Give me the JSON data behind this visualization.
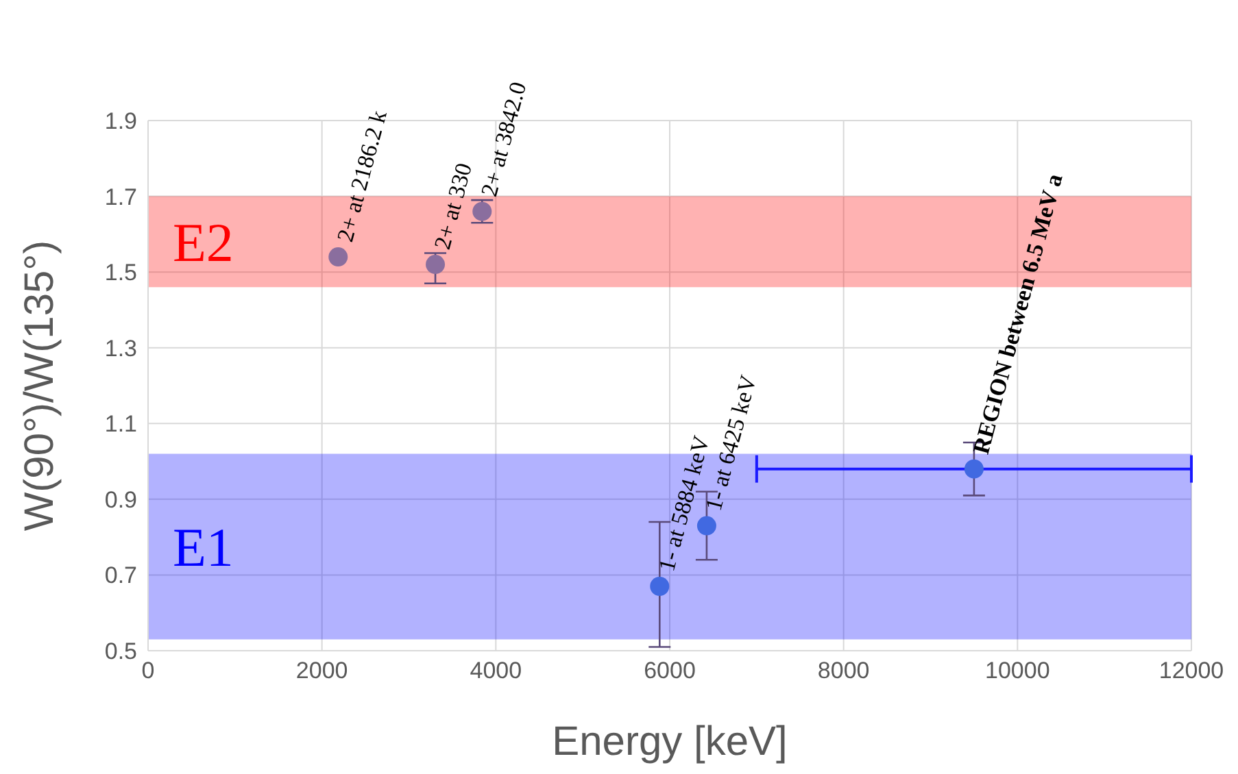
{
  "chart_data": {
    "type": "scatter",
    "xlabel": "Energy [keV]",
    "ylabel": "W(90°)/W(135°)",
    "xlim": [
      0,
      12000
    ],
    "xticks": [
      0,
      2000,
      4000,
      6000,
      8000,
      10000,
      12000
    ],
    "ylim": [
      0.5,
      1.9
    ],
    "yticks": [
      0.5,
      0.7,
      0.9,
      1.1,
      1.3,
      1.5,
      1.7,
      1.9
    ],
    "grid": true,
    "marker": "circle",
    "series": [
      {
        "color": "#8a6e9e",
        "x": [
          2186,
          3304,
          3842
        ],
        "values": [
          1.54,
          1.52,
          1.66
        ],
        "errors": [
          null,
          [
            1.47,
            1.55
          ],
          [
            1.63,
            1.69
          ]
        ]
      },
      {
        "color": "#4169e1",
        "x": [
          5884,
          6425,
          9500
        ],
        "values": [
          0.67,
          0.83,
          0.98
        ],
        "errors": [
          [
            0.51,
            0.84
          ],
          [
            0.74,
            0.92
          ],
          [
            0.91,
            1.05
          ]
        ],
        "xerrors": [
          null,
          null,
          2500
        ]
      }
    ],
    "bands": [
      {
        "axis": "y",
        "from": 1.46,
        "to": 1.7,
        "label": "E2",
        "color": "#ff0000"
      },
      {
        "axis": "y",
        "from": 0.53,
        "to": 1.02,
        "label": "E1",
        "color": "#0000ff"
      }
    ],
    "annotations": [
      {
        "text": "2+ at 2186.2 k",
        "x": 2186,
        "y": 1.54
      },
      {
        "text": "2+ at 330",
        "x": 3304,
        "y": 1.52
      },
      {
        "text": "2+ at 3842.0",
        "x": 3842,
        "y": 1.66
      },
      {
        "text": "1- at 5884 keV",
        "x": 5884,
        "y": 0.67
      },
      {
        "text": "1- at 6425 keV",
        "x": 6425,
        "y": 0.83
      },
      {
        "text": "REGION between 6.5 MeV a",
        "x": 9500,
        "y": 0.98
      }
    ]
  }
}
